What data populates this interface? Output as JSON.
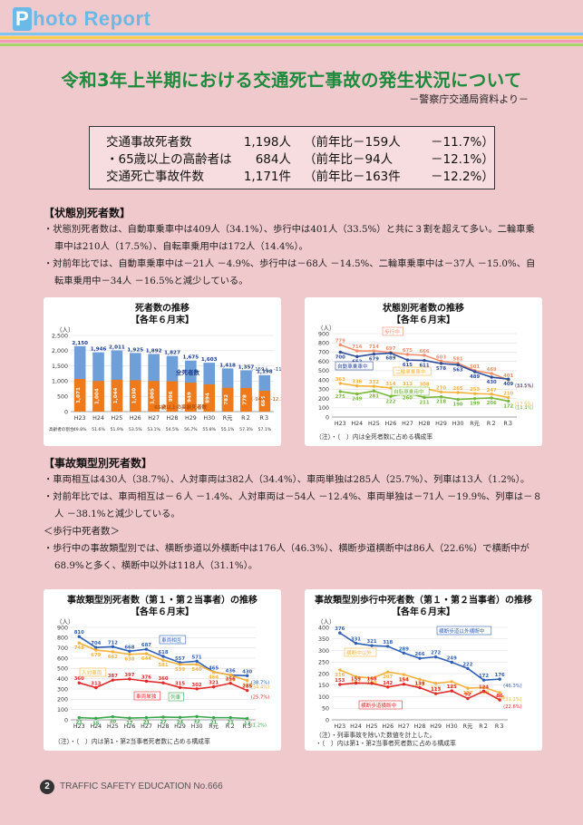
{
  "header": {
    "brand_first": "P",
    "brand_rest": "hoto ",
    "brand_second": "R",
    "brand_rest2": "eport",
    "stripe_colors": [
      "#7dc7ef",
      "#f6d04d",
      "#f09ab6",
      "#a7d46b"
    ]
  },
  "title": "令和3年上半期における交通死亡事故の発生状況について",
  "subtitle": "－警察庁交通局資料より－",
  "summary": [
    {
      "label": "交通事故死者数",
      "value": "1,198人",
      "prev": "（前年比－159人",
      "pct": "－11.7%）"
    },
    {
      "label": "・65歳以上の高齢者は",
      "value": "684人",
      "prev": "（前年比－94人",
      "pct": "－12.1%）"
    },
    {
      "label": "交通死亡事故件数",
      "value": "1,171件",
      "prev": "（前年比－163件",
      "pct": "－12.2%）"
    }
  ],
  "sec1": {
    "head": "【状態別死者数】",
    "p1": "・状態別死者数は、自動車乗車中は409人（34.1%）、歩行中は401人（33.5%）と共に３割を超えて多い。二輪車乗車中は210人（17.5%）、自転車乗用中は172人（14.4%）。",
    "p2": "・対前年比では、自動車乗車中は－21人 －4.9%、歩行中は－68人 －14.5%、二輪車乗車中は－37人 －15.0%、自転車乗用中－34人 －16.5%と減少している。"
  },
  "sec2": {
    "head": "【事故類型別死者数】",
    "p1": "・車両相互は430人（38.7%）、人対車両は382人（34.4%）、車両単独は285人（25.7%）、列車は13人（1.2%）。",
    "p2": "・対前年比では、車両相互は－６人 －1.4%、人対車両は－54人 －12.4%、車両単独は－71人 －19.9%、列車は－８人 －38.1%と減少している。",
    "sub": "＜歩行中死者数＞",
    "p3": "・歩行中の事故類型別では、横断歩道以外横断中は176人（46.3%）、横断歩道横断中は86人（22.6%）で横断中が68.9%と多く、横断中以外は118人（31.1%）。"
  },
  "footer": {
    "page": "2",
    "text": "TRAFFIC SAFETY EDUCATION  No.666"
  },
  "chart_data": [
    {
      "type": "bar",
      "title": "死者数の推移",
      "subtitle": "【各年６月末】",
      "ylabel": "（人）",
      "ylim": [
        0,
        2500
      ],
      "categories": [
        "H23",
        "H24",
        "H25",
        "H26",
        "H27",
        "H28",
        "H29",
        "H30",
        "R元",
        "R２",
        "R３"
      ],
      "series": [
        {
          "name": "全死者数",
          "values": [
            2150,
            1946,
            2011,
            1925,
            1892,
            1827,
            1675,
            1603,
            1418,
            1357,
            1198
          ],
          "color": "#6f9fd8"
        },
        {
          "name": "65歳以上の高齢死者数",
          "values": [
            1071,
            1004,
            1044,
            1030,
            1005,
            996,
            949,
            894,
            782,
            778,
            684
          ],
          "color": "#ee7a1c"
        }
      ],
      "row_label": "高齢者の割合",
      "row_values": [
        "49.8%",
        "51.6%",
        "51.9%",
        "53.5%",
        "53.1%",
        "54.5%",
        "56.7%",
        "55.8%",
        "55.1%",
        "57.3%",
        "57.1%"
      ],
      "annotations": [
        "（-159人、-11.7%）",
        "（-94人、-12.1%）"
      ]
    },
    {
      "type": "line",
      "title": "状態別死者数の推移",
      "subtitle": "【各年６月末】",
      "ylabel": "（人）",
      "ylim": [
        0,
        900
      ],
      "categories": [
        "H23",
        "H24",
        "H25",
        "H26",
        "H27",
        "H28",
        "H29",
        "H30",
        "R元",
        "R２",
        "R３"
      ],
      "series": [
        {
          "name": "歩行中",
          "values": [
            779,
            714,
            714,
            697,
            675,
            666,
            603,
            581,
            501,
            469,
            401
          ],
          "color": "#f08e6b"
        },
        {
          "name": "自動車乗車中",
          "values": [
            700,
            652,
            679,
            689,
            615,
            611,
            578,
            563,
            489,
            430,
            409
          ],
          "color": "#2f4c9b"
        },
        {
          "name": "二輪車乗車中",
          "values": [
            363,
            336,
            332,
            314,
            313,
            308,
            270,
            265,
            253,
            247,
            210
          ],
          "color": "#f4b23a"
        },
        {
          "name": "自転車乗用中",
          "values": [
            275,
            249,
            281,
            222,
            260,
            211,
            218,
            190,
            199,
            206,
            172
          ],
          "color": "#77b83b"
        }
      ],
      "end_pct": [
        "（34.1%）",
        "（33.5%）",
        "（17.5%）",
        "（14.4%）"
      ],
      "note": "（注）・（　）内は全死者数に占める構成率"
    },
    {
      "type": "line",
      "title": "事故類型別死者数（第１・第２当事者）の推移",
      "subtitle": "【各年６月末】",
      "ylabel": "（人）",
      "ylim": [
        0,
        900
      ],
      "categories": [
        "H23",
        "H24",
        "H25",
        "H26",
        "H27",
        "H28",
        "H29",
        "H30",
        "R元",
        "R２",
        "R３"
      ],
      "series": [
        {
          "name": "車両相互",
          "values": [
            810,
            704,
            712,
            668,
            687,
            618,
            557,
            571,
            465,
            436,
            430
          ],
          "color": "#2f5fb5"
        },
        {
          "name": "人対車両",
          "values": [
            748,
            679,
            662,
            638,
            644,
            581,
            539,
            540,
            464,
            436,
            382
          ],
          "color": "#f4b23a"
        },
        {
          "name": "車両単独",
          "values": [
            360,
            313,
            387,
            397,
            376,
            360,
            315,
            302,
            321,
            356,
            285
          ],
          "color": "#e02a2a"
        },
        {
          "name": "列車",
          "values": [
            21,
            15,
            30,
            17,
            21,
            27,
            24,
            32,
            21,
            21,
            13
          ],
          "color": "#3aa64b"
        }
      ],
      "end_pct": [
        "(38.7%)",
        "(34.4%)",
        "(25.7%)",
        "(1.2%)"
      ],
      "note": "（注）・（　）内は第1・第2当事者死者数に占める構成率"
    },
    {
      "type": "line",
      "title": "事故類型別歩行中死者数（第１・第２当事者）の推移",
      "subtitle": "【各年６月末】",
      "ylabel": "（人）",
      "ylim": [
        0,
        400
      ],
      "categories": [
        "H23",
        "H24",
        "H25",
        "H26",
        "H27",
        "H28",
        "H29",
        "H30",
        "R元",
        "R２",
        "R３"
      ],
      "series": [
        {
          "name": "横断歩道以外横断中",
          "values": [
            376,
            331,
            321,
            318,
            289,
            266,
            272,
            249,
            222,
            172,
            176
          ],
          "color": "#2f5fb5"
        },
        {
          "name": "横断中以外",
          "values": [
            216,
            187,
            180,
            207,
            196,
            175,
            158,
            165,
            137,
            140,
            118
          ],
          "color": "#f4b23a"
        },
        {
          "name": "横断歩道横断中",
          "values": [
            153,
            159,
            158,
            142,
            154,
            139,
            113,
            125,
            92,
            124,
            86
          ],
          "color": "#e02a2a"
        }
      ],
      "end_pct": [
        "(46.3%)",
        "(31.1%)",
        "(22.6%)"
      ],
      "note": "（注）・列車事故を除いた数値を計上した。\n・（　）内は第1・第2当事者死者数に占める構成率"
    }
  ]
}
